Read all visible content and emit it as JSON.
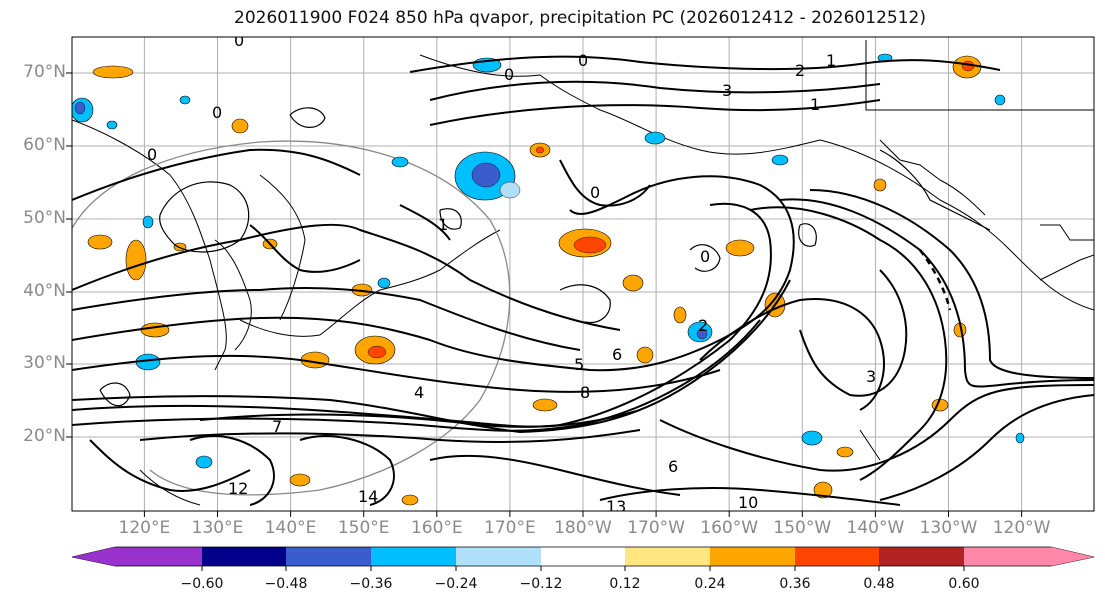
{
  "title": "2026011900 F024 850 hPa qvapor, precipitation PC (2026012412 - 2026012512)",
  "map": {
    "lat_labels": [
      "70°N",
      "60°N",
      "50°N",
      "40°N",
      "30°N",
      "20°N"
    ],
    "lon_labels": [
      "120°E",
      "130°E",
      "140°E",
      "150°E",
      "160°E",
      "170°E",
      "180°W",
      "170°W",
      "160°W",
      "150°W",
      "140°W",
      "130°W",
      "120°W"
    ],
    "contour_labels": [
      "0",
      "0",
      "0",
      "0",
      "0",
      "0",
      "0",
      "1",
      "1",
      "1",
      "2",
      "2",
      "3",
      "3",
      "4",
      "5",
      "6",
      "6",
      "7",
      "8",
      "10",
      "12",
      "13",
      "14"
    ],
    "colors": {
      "land_outline": "#000000",
      "contour": "#000000",
      "grid": "#b0b0b0",
      "positive_low": "#ffa500",
      "positive_high": "#ff4500",
      "negative_low": "#00bfff",
      "negative_high": "#4169e1"
    }
  },
  "colorbar": {
    "ticks": [
      "−0.60",
      "−0.48",
      "−0.36",
      "−0.24",
      "−0.12",
      "0.12",
      "0.24",
      "0.36",
      "0.48",
      "0.60"
    ],
    "colors": [
      "#9932cc",
      "#00008b",
      "#3a5ccc",
      "#00bfff",
      "#b0e0fa",
      "#ffffff",
      "#ffe680",
      "#ffa500",
      "#ff4500",
      "#b22222",
      "#ff88aa"
    ]
  }
}
